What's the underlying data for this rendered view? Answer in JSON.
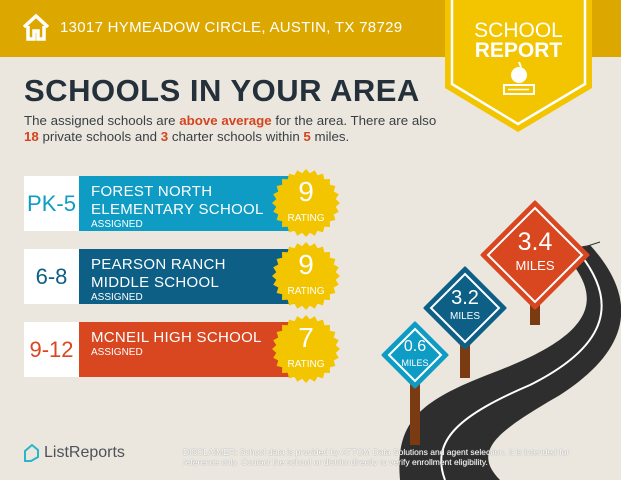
{
  "header": {
    "address": "13017 HYMEADOW CIRCLE, AUSTIN, TX 78729",
    "icon": "home-icon",
    "color": "#dca800"
  },
  "badge": {
    "line1": "SCHOOL",
    "line2": "REPORT",
    "icon": "apple-books-icon",
    "color": "#f2c500"
  },
  "title": "SCHOOLS IN YOUR AREA",
  "intro": {
    "p1": "The assigned schools are ",
    "emph": "above average",
    "p2": " for the area. There are also ",
    "private_count": "18",
    "p3": " private schools and ",
    "charter_count": "3",
    "p4": " charter schools within ",
    "miles": "5",
    "p5": " miles."
  },
  "schools": [
    {
      "grades": "PK-5",
      "name": "FOREST NORTH ELEMENTARY SCHOOL",
      "status": "ASSIGNED",
      "rating": "9",
      "rating_label": "RATING",
      "color": "#0e9cc4",
      "distance": "0.6",
      "distance_unit": "MILES"
    },
    {
      "grades": "6-8",
      "name": "PEARSON RANCH MIDDLE SCHOOL",
      "status": "ASSIGNED",
      "rating": "9",
      "rating_label": "RATING",
      "color": "#0d5f86",
      "distance": "3.2",
      "distance_unit": "MILES"
    },
    {
      "grades": "9-12",
      "name": "MCNEIL HIGH SCHOOL",
      "status": "ASSIGNED",
      "rating": "7",
      "rating_label": "RATING",
      "color": "#d84720",
      "distance": "3.4",
      "distance_unit": "MILES"
    }
  ],
  "footer": {
    "logo": "ListReports",
    "disclaimer_label": "DISCLAIMER:",
    "disclaimer": " School data is provided by ATTOM Data Solutions and agent selection. It is intended for reference only. Contact the school or district directly to verify enrollment eligibility."
  }
}
